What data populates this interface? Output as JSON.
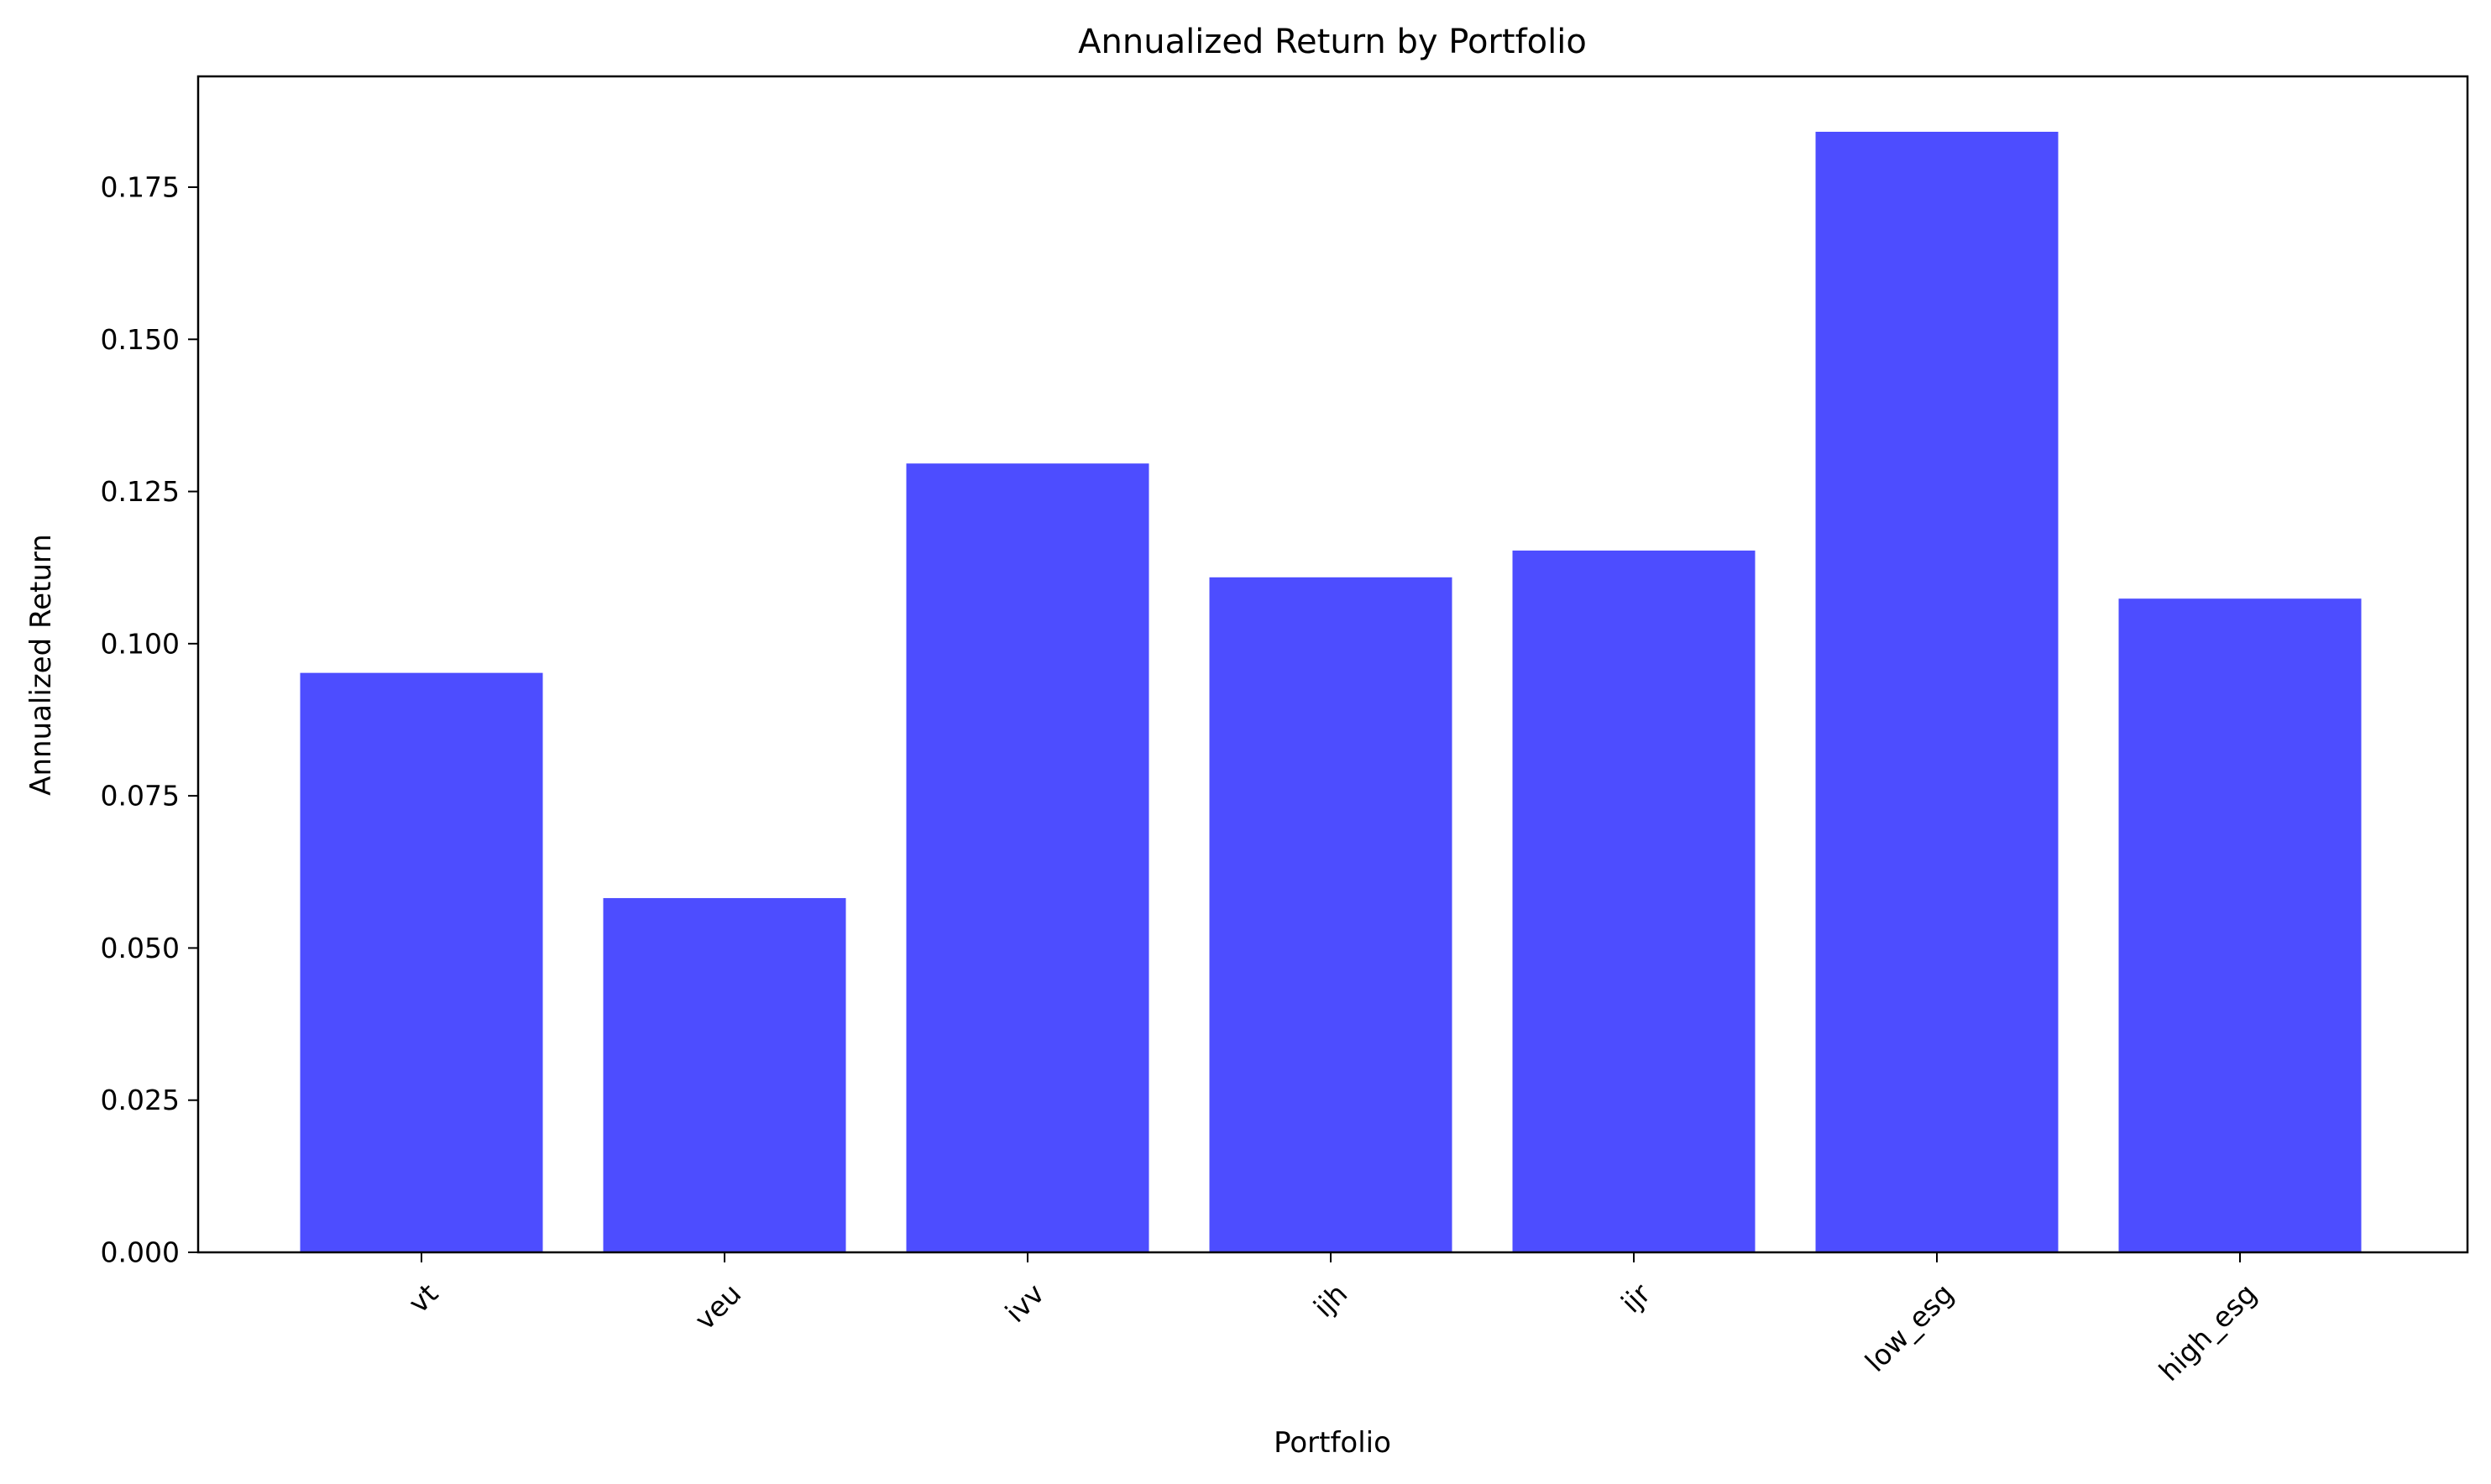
{
  "chart_data": {
    "type": "bar",
    "title": "Annualized Return by Portfolio",
    "xlabel": "Portfolio",
    "ylabel": "Annualized Return",
    "categories": [
      "vt",
      "veu",
      "ivv",
      "ijh",
      "ijr",
      "low_esg",
      "high_esg"
    ],
    "values": [
      0.0952,
      0.0582,
      0.1296,
      0.1109,
      0.1153,
      0.1841,
      0.1074
    ],
    "ylim": [
      0,
      0.1932
    ],
    "yticks": [
      "0.000",
      "0.025",
      "0.050",
      "0.075",
      "0.100",
      "0.125",
      "0.150",
      "0.175"
    ],
    "ytick_values": [
      0,
      0.025,
      0.05,
      0.075,
      0.1,
      0.125,
      0.15,
      0.175
    ],
    "xtick_rotation_deg": 45,
    "grid": false,
    "legend": null,
    "bar_color": "#4d4dff"
  }
}
